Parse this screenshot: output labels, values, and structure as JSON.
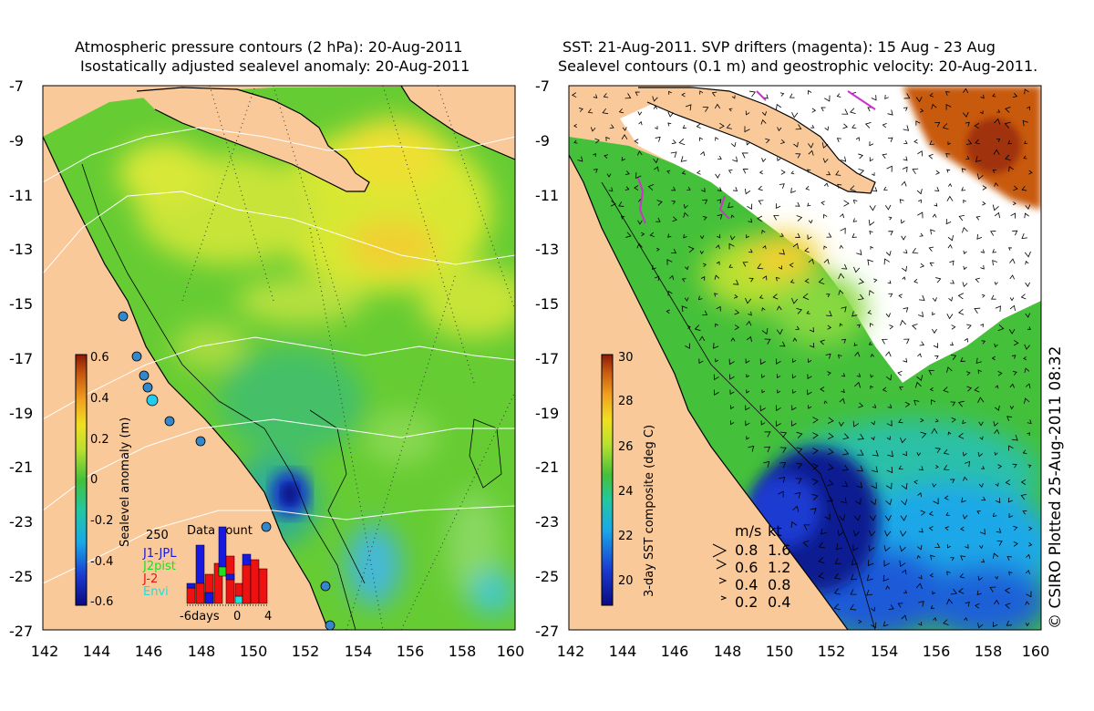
{
  "left_panel": {
    "title_line1": "Atmospheric pressure contours (2 hPa): 20-Aug-2011",
    "title_line2": "Isostatically adjusted sealevel anomaly: 20-Aug-2011",
    "x_ticks": [
      "142",
      "144",
      "146",
      "148",
      "150",
      "152",
      "154",
      "156",
      "158",
      "160"
    ],
    "y_ticks": [
      "-7",
      "-9",
      "-11",
      "-13",
      "-15",
      "-17",
      "-19",
      "-21",
      "-23",
      "-25",
      "-27"
    ],
    "colorbar": {
      "label": "Sealevel anomaly (m)",
      "ticks": [
        "0.6",
        "0.4",
        "0.2",
        "0",
        "-0.2",
        "-0.4",
        "-0.6"
      ]
    },
    "data_count": {
      "title": "Data count",
      "max_label": "250",
      "legend": [
        "J1-JPL",
        "J2pist",
        "J-2",
        "Envi"
      ],
      "legend_colors": [
        "#1818e0",
        "#22dd22",
        "#ee1111",
        "#22dddd"
      ],
      "x_labels": [
        "-6days",
        "0",
        "4"
      ]
    }
  },
  "right_panel": {
    "title_line1": "SST: 21-Aug-2011. SVP drifters (magenta): 15 Aug - 23 Aug",
    "title_line2": "Sealevel contours (0.1 m) and geostrophic velocity: 20-Aug-2011.",
    "x_ticks": [
      "142",
      "144",
      "146",
      "148",
      "150",
      "152",
      "154",
      "156",
      "158",
      "160"
    ],
    "y_ticks": [
      "-7",
      "-9",
      "-11",
      "-13",
      "-15",
      "-17",
      "-19",
      "-21",
      "-23",
      "-25",
      "-27"
    ],
    "colorbar": {
      "label": "3-day SST composite (deg C)",
      "ticks": [
        "30",
        "28",
        "26",
        "24",
        "22",
        "20"
      ]
    },
    "velocity_legend": {
      "header_ms": "m/s",
      "header_kt": "kt",
      "rows": [
        {
          "ms": "0.8",
          "kt": "1.6"
        },
        {
          "ms": "0.6",
          "kt": "1.2"
        },
        {
          "ms": "0.4",
          "kt": "0.8"
        },
        {
          "ms": "0.2",
          "kt": "0.4"
        }
      ]
    }
  },
  "credit": "© CSIRO Plotted 25-Aug-2011 08:32",
  "colors": {
    "land": "#f9c99a",
    "sla_base": "#66cc33",
    "sst_warm": "#c04010",
    "sst_cool": "#1c3fb0",
    "drifter": "#cc33cc"
  }
}
